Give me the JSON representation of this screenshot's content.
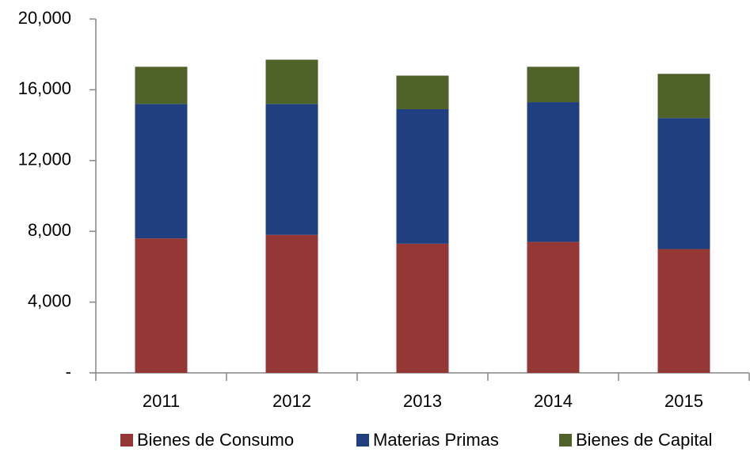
{
  "chart_data": {
    "type": "stacked_bar",
    "categories": [
      "2011",
      "2012",
      "2013",
      "2014",
      "2015"
    ],
    "series": [
      {
        "name": "Bienes de Consumo",
        "color": "#953735",
        "values": [
          7600,
          7800,
          7300,
          7400,
          7000
        ]
      },
      {
        "name": "Materias Primas",
        "color": "#203f80",
        "values": [
          7600,
          7400,
          7600,
          7900,
          7400
        ]
      },
      {
        "name": "Bienes de Capital",
        "color": "#4f6228",
        "values": [
          2100,
          2500,
          1900,
          2000,
          2500
        ]
      }
    ],
    "ylim": [
      0,
      20000
    ],
    "yticks": [
      {
        "value": 0,
        "label": "-"
      },
      {
        "value": 4000,
        "label": "4,000"
      },
      {
        "value": 8000,
        "label": "8,000"
      },
      {
        "value": 12000,
        "label": "12,000"
      },
      {
        "value": 16000,
        "label": "16,000"
      },
      {
        "value": 20000,
        "label": "20,000"
      }
    ],
    "grid": false,
    "legend": "bottom"
  }
}
